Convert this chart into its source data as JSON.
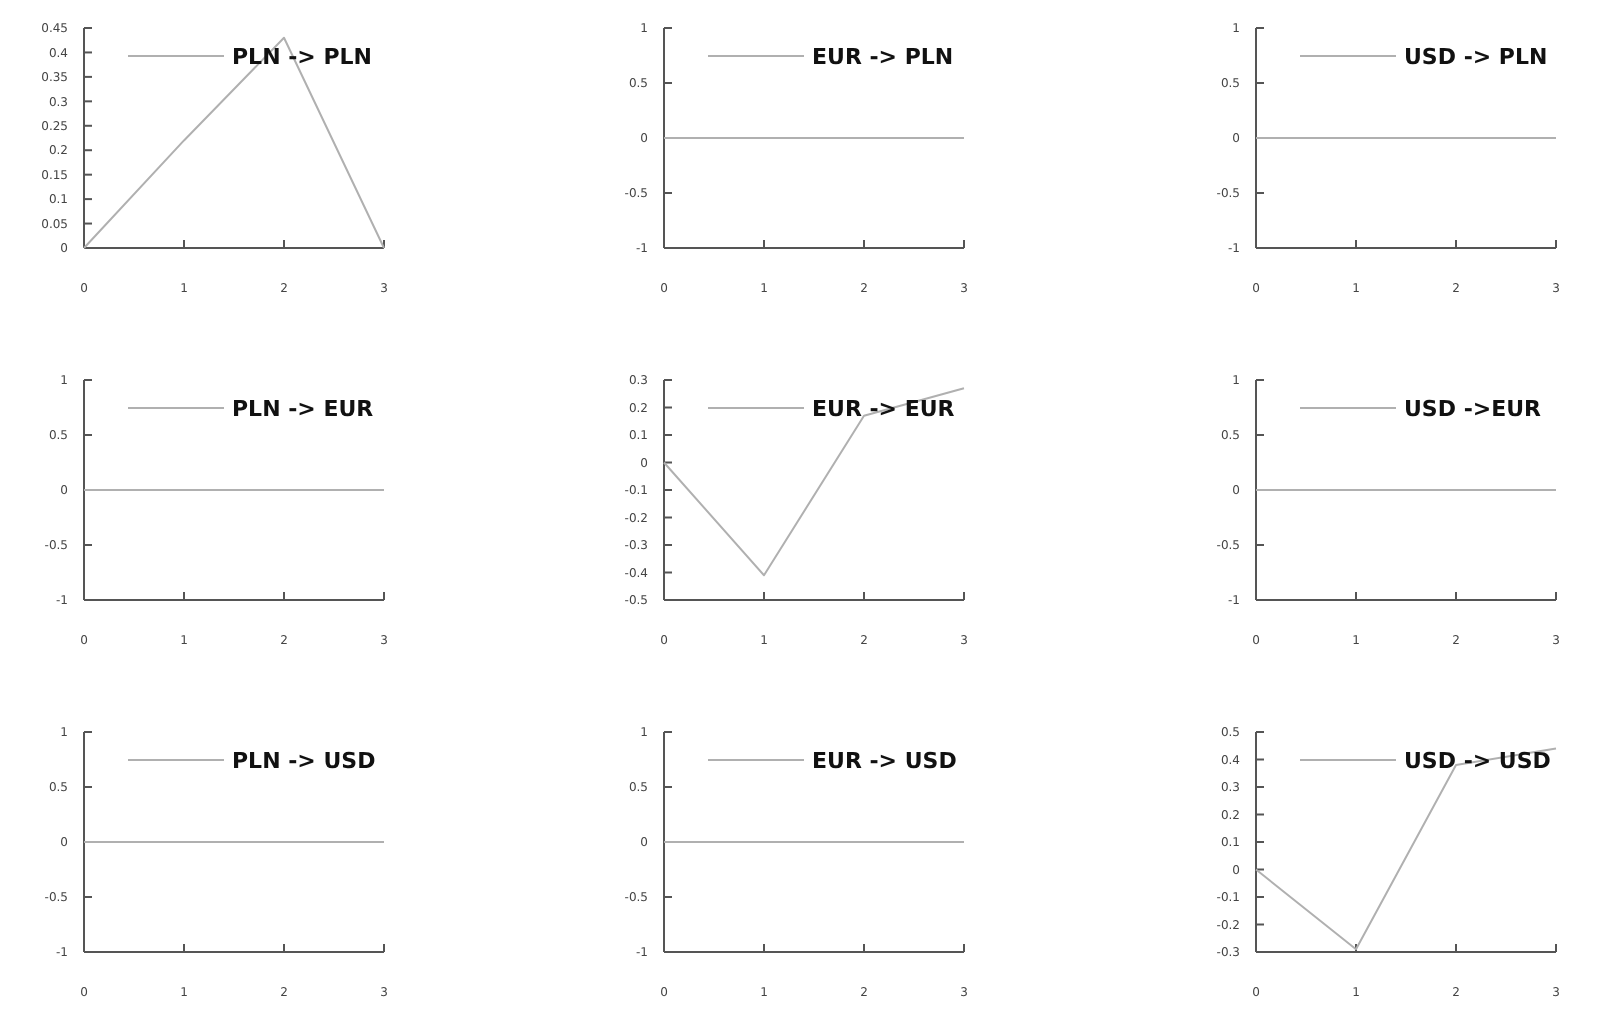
{
  "chart_data": [
    {
      "type": "line",
      "x": [
        0,
        1,
        2,
        3
      ],
      "series": [
        {
          "name": "PLN -> PLN",
          "color": "#b0b0b0",
          "values": [
            0,
            0.22,
            0.43,
            0
          ]
        }
      ],
      "xlim": [
        0,
        3
      ],
      "xticks": [
        0,
        1,
        2,
        3
      ],
      "ylim": [
        0,
        0.45
      ],
      "yticks": [
        0,
        0.05,
        0.1,
        0.15,
        0.2,
        0.25,
        0.3,
        0.35,
        0.4,
        0.45
      ],
      "legend": "top",
      "grid": false
    },
    {
      "type": "line",
      "x": [
        0,
        1,
        2,
        3
      ],
      "series": [
        {
          "name": "EUR -> PLN",
          "color": "#b0b0b0",
          "values": [
            0,
            0,
            0,
            0
          ]
        }
      ],
      "xlim": [
        0,
        3
      ],
      "xticks": [
        0,
        1,
        2,
        3
      ],
      "ylim": [
        -1,
        1
      ],
      "yticks": [
        -1,
        -0.5,
        0,
        0.5,
        1
      ],
      "legend": "top",
      "grid": false
    },
    {
      "type": "line",
      "x": [
        0,
        1,
        2,
        3
      ],
      "series": [
        {
          "name": "USD -> PLN",
          "color": "#b0b0b0",
          "values": [
            0,
            0,
            0,
            0
          ]
        }
      ],
      "xlim": [
        0,
        3
      ],
      "xticks": [
        0,
        1,
        2,
        3
      ],
      "ylim": [
        -1,
        1
      ],
      "yticks": [
        -1,
        -0.5,
        0,
        0.5,
        1
      ],
      "legend": "top",
      "grid": false
    },
    {
      "type": "line",
      "x": [
        0,
        1,
        2,
        3
      ],
      "series": [
        {
          "name": "PLN -> EUR",
          "color": "#b0b0b0",
          "values": [
            0,
            0,
            0,
            0
          ]
        }
      ],
      "xlim": [
        0,
        3
      ],
      "xticks": [
        0,
        1,
        2,
        3
      ],
      "ylim": [
        -1,
        1
      ],
      "yticks": [
        -1,
        -0.5,
        0,
        0.5,
        1
      ],
      "legend": "top",
      "grid": false
    },
    {
      "type": "line",
      "x": [
        0,
        1,
        2,
        3
      ],
      "series": [
        {
          "name": "EUR -> EUR",
          "color": "#b0b0b0",
          "values": [
            0,
            -0.41,
            0.17,
            0.27
          ]
        }
      ],
      "xlim": [
        0,
        3
      ],
      "xticks": [
        0,
        1,
        2,
        3
      ],
      "ylim": [
        -0.5,
        0.3
      ],
      "yticks": [
        -0.5,
        -0.4,
        -0.3,
        -0.2,
        -0.1,
        0,
        0.1,
        0.2,
        0.3
      ],
      "legend": "top",
      "grid": false
    },
    {
      "type": "line",
      "x": [
        0,
        1,
        2,
        3
      ],
      "series": [
        {
          "name": "USD ->EUR",
          "color": "#b0b0b0",
          "values": [
            0,
            0,
            0,
            0
          ]
        }
      ],
      "xlim": [
        0,
        3
      ],
      "xticks": [
        0,
        1,
        2,
        3
      ],
      "ylim": [
        -1,
        1
      ],
      "yticks": [
        -1,
        -0.5,
        0,
        0.5,
        1
      ],
      "legend": "top",
      "grid": false
    },
    {
      "type": "line",
      "x": [
        0,
        1,
        2,
        3
      ],
      "series": [
        {
          "name": "PLN -> USD",
          "color": "#b0b0b0",
          "values": [
            0,
            0,
            0,
            0
          ]
        }
      ],
      "xlim": [
        0,
        3
      ],
      "xticks": [
        0,
        1,
        2,
        3
      ],
      "ylim": [
        -1,
        1
      ],
      "yticks": [
        -1,
        -0.5,
        0,
        0.5,
        1
      ],
      "legend": "top",
      "grid": false
    },
    {
      "type": "line",
      "x": [
        0,
        1,
        2,
        3
      ],
      "series": [
        {
          "name": "EUR -> USD",
          "color": "#b0b0b0",
          "values": [
            0,
            0,
            0,
            0
          ]
        }
      ],
      "xlim": [
        0,
        3
      ],
      "xticks": [
        0,
        1,
        2,
        3
      ],
      "ylim": [
        -1,
        1
      ],
      "yticks": [
        -1,
        -0.5,
        0,
        0.5,
        1
      ],
      "legend": "top",
      "grid": false
    },
    {
      "type": "line",
      "x": [
        0,
        1,
        2,
        3
      ],
      "series": [
        {
          "name": "USD -> USD",
          "color": "#b0b0b0",
          "values": [
            0,
            -0.29,
            0.38,
            0.44
          ]
        }
      ],
      "xlim": [
        0,
        3
      ],
      "xticks": [
        0,
        1,
        2,
        3
      ],
      "ylim": [
        -0.3,
        0.5
      ],
      "yticks": [
        -0.3,
        -0.2,
        -0.1,
        0,
        0.1,
        0.2,
        0.3,
        0.4,
        0.5
      ],
      "legend": "top",
      "grid": false
    }
  ]
}
